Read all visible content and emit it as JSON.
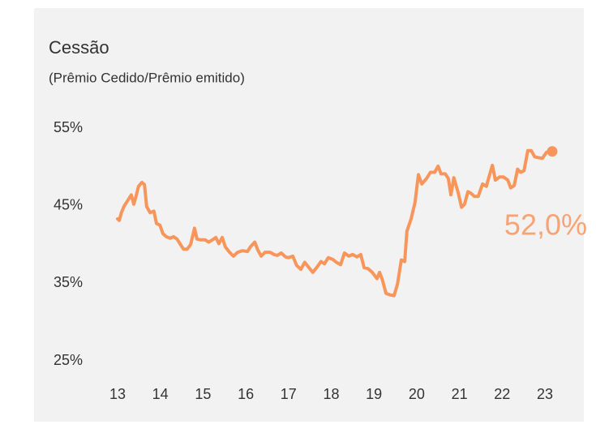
{
  "chart_data": {
    "type": "line",
    "title": "Cessão",
    "subtitle": "(Prêmio Cedido/Prêmio emitido)",
    "x": [
      13.0,
      13.04,
      13.09,
      13.15,
      13.23,
      13.32,
      13.38,
      13.44,
      13.49,
      13.57,
      13.63,
      13.68,
      13.76,
      13.85,
      13.91,
      13.99,
      14.06,
      14.14,
      14.23,
      14.31,
      14.39,
      14.46,
      14.54,
      14.63,
      14.71,
      14.8,
      14.86,
      14.94,
      15.05,
      15.13,
      15.22,
      15.3,
      15.37,
      15.45,
      15.52,
      15.62,
      15.71,
      15.81,
      15.92,
      16.04,
      16.11,
      16.21,
      16.28,
      16.36,
      16.45,
      16.57,
      16.66,
      16.74,
      16.83,
      16.93,
      17.0,
      17.1,
      17.19,
      17.29,
      17.38,
      17.48,
      17.57,
      17.67,
      17.76,
      17.84,
      17.93,
      18.03,
      18.12,
      18.22,
      18.31,
      18.41,
      18.5,
      18.6,
      18.69,
      18.77,
      18.86,
      18.96,
      19.07,
      19.13,
      19.2,
      19.28,
      19.38,
      19.47,
      19.55,
      19.64,
      19.72,
      19.77,
      19.87,
      19.96,
      20.04,
      20.12,
      20.23,
      20.32,
      20.42,
      20.5,
      20.57,
      20.67,
      20.74,
      20.8,
      20.87,
      20.97,
      21.05,
      21.12,
      21.2,
      21.27,
      21.35,
      21.44,
      21.54,
      21.63,
      21.69,
      21.77,
      21.84,
      21.94,
      22.03,
      22.13,
      22.2,
      22.28,
      22.36,
      22.43,
      22.51,
      22.6,
      22.68,
      22.76,
      22.85,
      22.94,
      23.04,
      23.17
    ],
    "series": [
      {
        "color": "#f7955a",
        "values": [
          43.3,
          43.1,
          44.1,
          44.9,
          45.6,
          46.4,
          45.2,
          46.4,
          47.5,
          48.0,
          47.7,
          44.9,
          44.1,
          44.3,
          42.7,
          42.5,
          41.4,
          41.0,
          40.8,
          41.0,
          40.7,
          40.1,
          39.4,
          39.4,
          40.0,
          42.1,
          40.7,
          40.6,
          40.6,
          40.3,
          40.6,
          40.9,
          40.1,
          40.9,
          39.7,
          39.0,
          38.5,
          39.0,
          39.2,
          39.1,
          39.7,
          40.3,
          39.3,
          38.5,
          39.0,
          39.0,
          38.7,
          38.6,
          38.9,
          38.4,
          38.3,
          38.5,
          37.3,
          36.8,
          37.7,
          37.0,
          36.4,
          37.1,
          37.8,
          37.5,
          38.3,
          38.1,
          37.7,
          37.4,
          38.9,
          38.5,
          38.7,
          38.4,
          38.7,
          37.0,
          36.9,
          36.4,
          35.6,
          36.4,
          35.4,
          33.7,
          33.5,
          33.4,
          34.9,
          38.0,
          37.8,
          41.7,
          43.3,
          45.4,
          49.0,
          47.8,
          48.5,
          49.3,
          49.3,
          50.1,
          49.1,
          49.1,
          48.5,
          46.4,
          48.6,
          46.7,
          44.8,
          45.2,
          46.8,
          46.6,
          46.2,
          46.2,
          47.8,
          47.5,
          48.7,
          50.2,
          48.3,
          48.7,
          48.7,
          48.3,
          47.3,
          47.6,
          49.7,
          49.3,
          49.5,
          52.1,
          52.1,
          51.3,
          51.2,
          51.1,
          51.9,
          52.0
        ]
      }
    ],
    "annotations": [
      {
        "text": "52,0%"
      }
    ],
    "xlim": [
      13,
      23
    ],
    "xticks": [
      13,
      14,
      15,
      16,
      17,
      18,
      19,
      20,
      21,
      22,
      23
    ],
    "ylim": [
      25,
      55
    ],
    "yticks": [
      {
        "value": 25,
        "label": "25%"
      },
      {
        "value": 35,
        "label": "35%"
      },
      {
        "value": 45,
        "label": "45%"
      },
      {
        "value": 55,
        "label": "55%"
      }
    ],
    "grid": false
  }
}
